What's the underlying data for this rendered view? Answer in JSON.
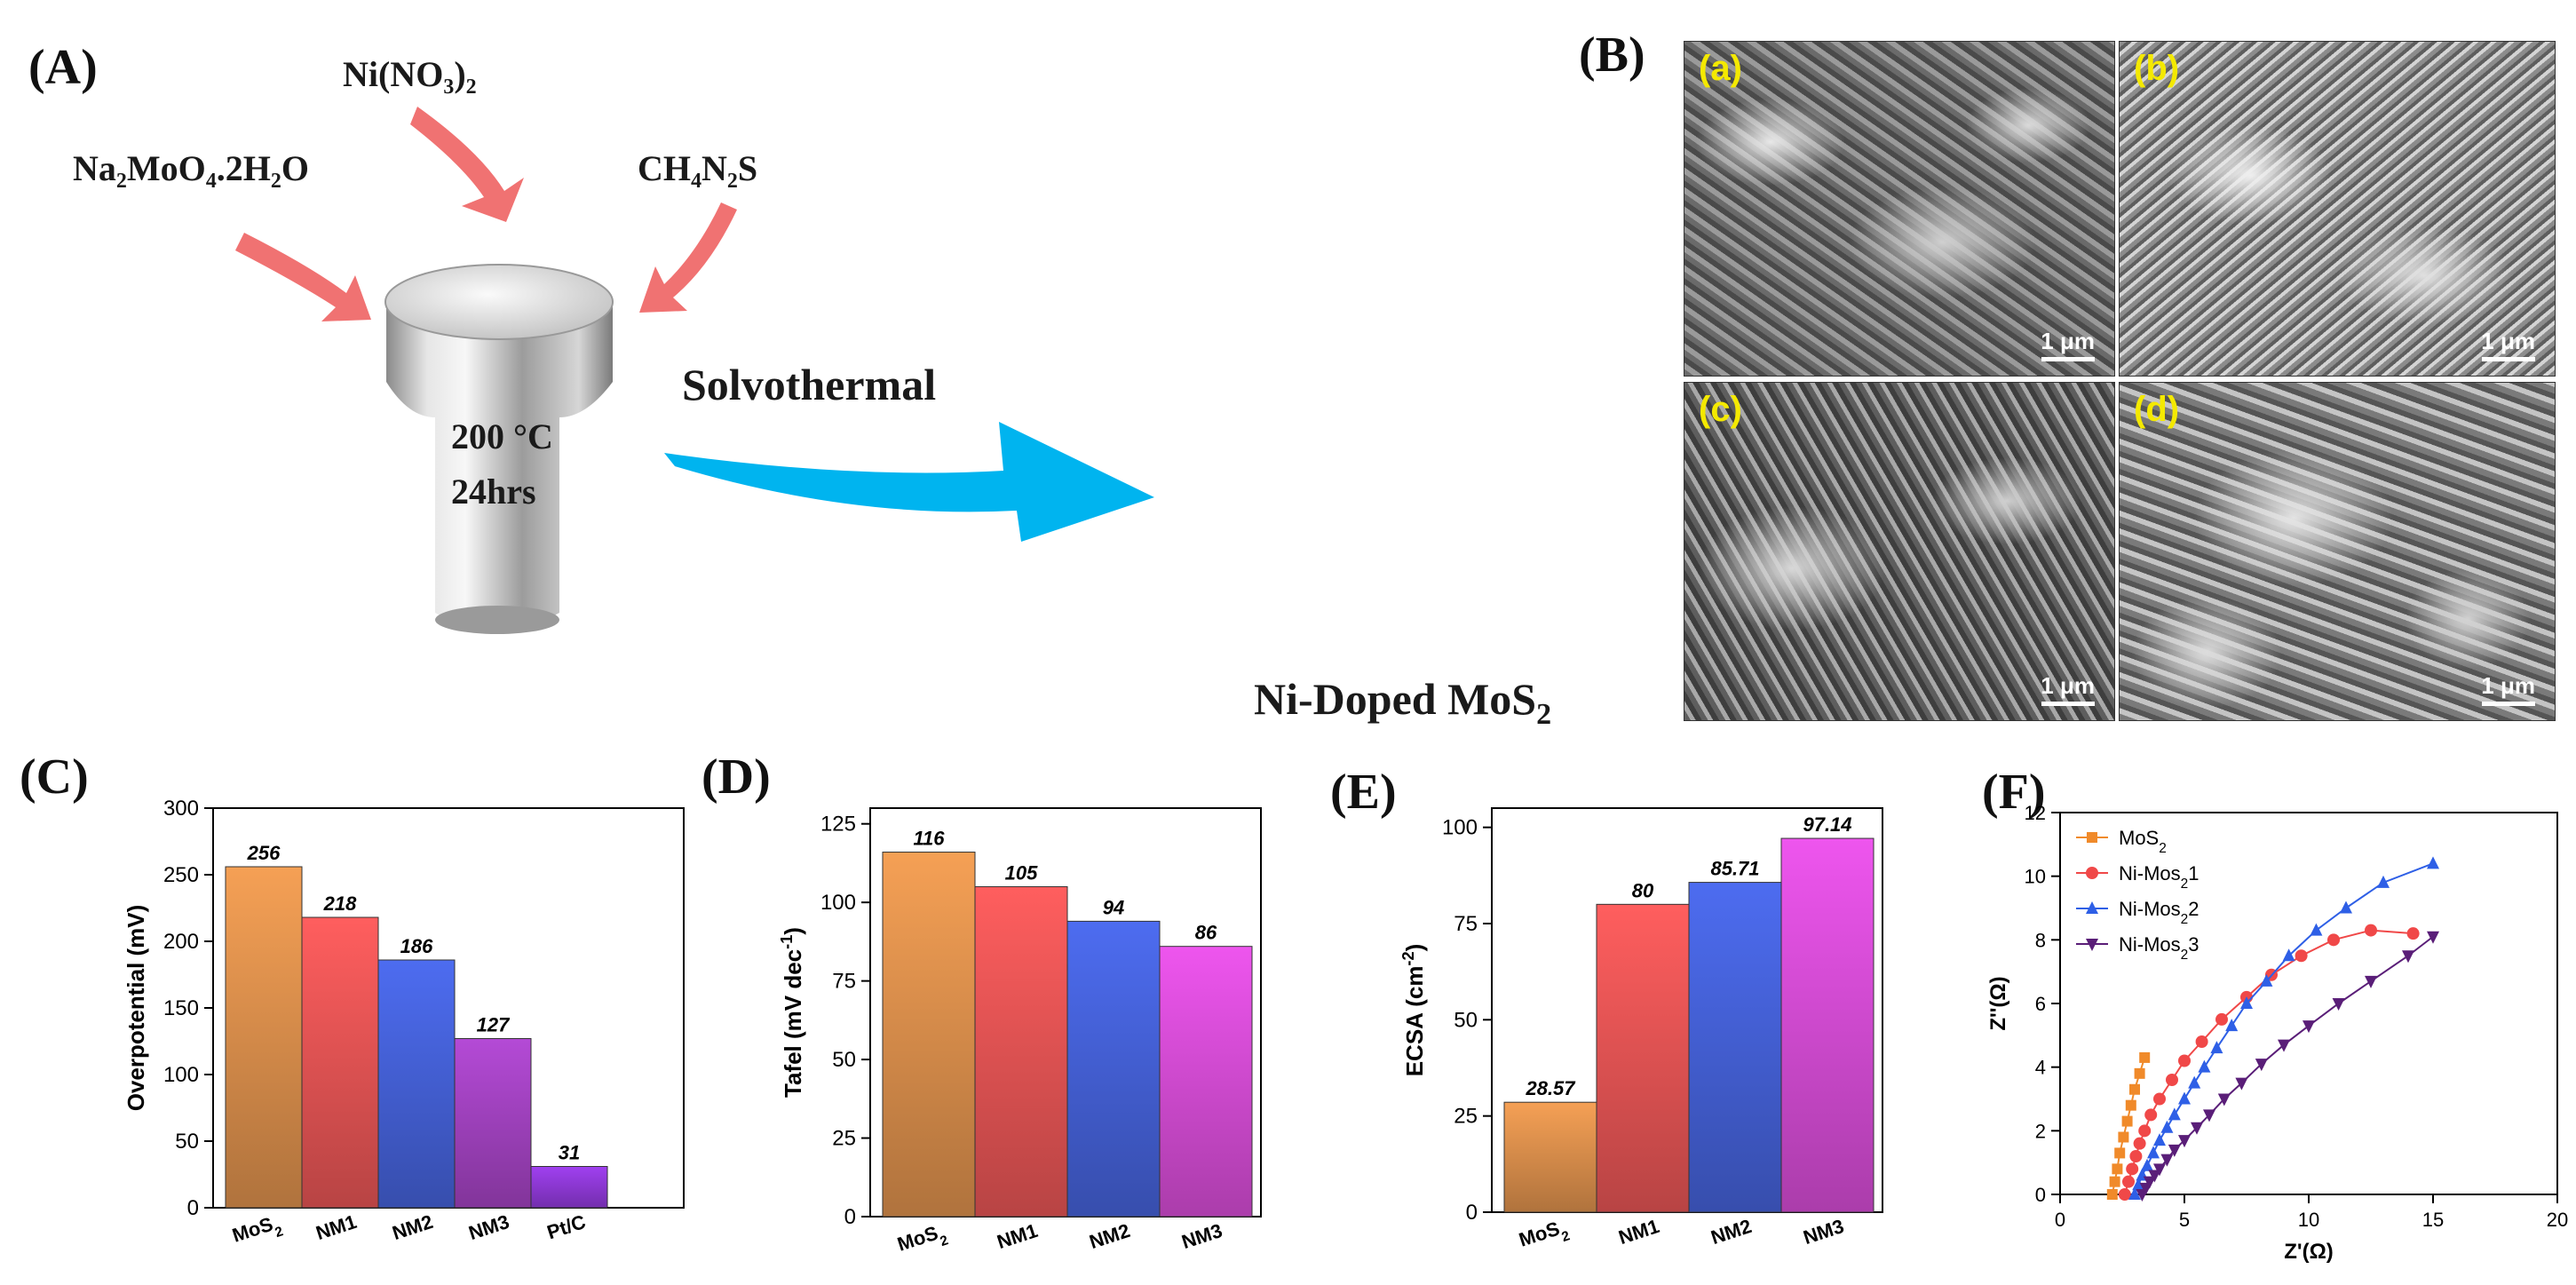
{
  "panel_labels": {
    "A": "(A)",
    "B": "(B)",
    "C": "(C)",
    "D": "(D)",
    "E": "(E)",
    "F": "(F)"
  },
  "schematic": {
    "reagents": [
      "Ni(NO₃)₂",
      "Na₂MoO₄.2H₂O",
      "CH₄N₂S"
    ],
    "conditions_temp": "200 °C",
    "conditions_time": "24hrs",
    "process": "Solvothermal",
    "product": "Ni-Doped MoS",
    "product_sub": "2",
    "arrow_color": "#f07272",
    "flow_arrow_color": "#00b4ef"
  },
  "sem": {
    "panels": [
      {
        "letter": "(a)",
        "scale": "1 μm"
      },
      {
        "letter": "(b)",
        "scale": "1 μm"
      },
      {
        "letter": "(c)",
        "scale": "1 μm"
      },
      {
        "letter": "(d)",
        "scale": "1 μm"
      }
    ]
  },
  "chart_data": [
    {
      "id": "C",
      "type": "bar",
      "ylabel": "Overpotential (mV)",
      "ylim": [
        0,
        300
      ],
      "yticks": [
        0,
        50,
        100,
        150,
        200,
        250,
        300
      ],
      "categories": [
        "MoS2",
        "NM1",
        "NM2",
        "NM3",
        "Pt/C"
      ],
      "category_subscripts": [
        "2",
        "",
        "",
        "",
        ""
      ],
      "values": [
        256,
        218,
        186,
        127,
        31
      ],
      "value_labels": [
        "256",
        "218",
        "186",
        "127",
        "31"
      ],
      "colors": [
        "#f5a055",
        "#ff5e5e",
        "#4d6cf0",
        "#b44ad6",
        "#a040f0"
      ]
    },
    {
      "id": "D",
      "type": "bar",
      "ylabel": "Tafel (mV dec",
      "ylabel_sup": "-1",
      "ylabel_end": ")",
      "ylim": [
        0,
        130
      ],
      "yticks": [
        0,
        25,
        50,
        75,
        100,
        125
      ],
      "categories": [
        "MoS2",
        "NM1",
        "NM2",
        "NM3"
      ],
      "category_subscripts": [
        "2",
        "",
        "",
        ""
      ],
      "values": [
        116,
        105,
        94,
        86
      ],
      "value_labels": [
        "116",
        "105",
        "94",
        "86"
      ],
      "colors": [
        "#f5a055",
        "#ff5e5e",
        "#4d6cf0",
        "#ee55ee"
      ]
    },
    {
      "id": "E",
      "type": "bar",
      "ylabel": "ECSA (cm",
      "ylabel_sup": "-2",
      "ylabel_end": ")",
      "ylim": [
        0,
        105
      ],
      "yticks": [
        0,
        25,
        50,
        75,
        100
      ],
      "categories": [
        "MoS2",
        "NM1",
        "NM2",
        "NM3"
      ],
      "category_subscripts": [
        "2",
        "",
        "",
        ""
      ],
      "values": [
        28.57,
        80,
        85.71,
        97.14
      ],
      "value_labels": [
        "28.57",
        "80",
        "85.71",
        "97.14"
      ],
      "colors": [
        "#f5a055",
        "#ff5e5e",
        "#4d6cf0",
        "#ee55ee"
      ]
    },
    {
      "id": "F",
      "type": "scatter",
      "xlabel": "Z'(Ω)",
      "ylabel": "Z''(Ω)",
      "xlim": [
        0,
        20
      ],
      "ylim": [
        0,
        12
      ],
      "xticks": [
        0,
        5,
        10,
        15,
        20
      ],
      "yticks": [
        0,
        2,
        4,
        6,
        8,
        10,
        12
      ],
      "legend_position": "top-left",
      "series": [
        {
          "name": "MoS",
          "sub": "2",
          "suffix": "",
          "color": "#f08a2a",
          "marker": "square",
          "x": [
            2.1,
            2.2,
            2.3,
            2.4,
            2.55,
            2.7,
            2.85,
            3.0,
            3.2,
            3.4
          ],
          "y": [
            0.0,
            0.4,
            0.8,
            1.3,
            1.8,
            2.3,
            2.8,
            3.3,
            3.8,
            4.3
          ]
        },
        {
          "name": "Ni-Mos",
          "sub": "2",
          "suffix": "1",
          "color": "#f04848",
          "marker": "circle",
          "x": [
            2.6,
            2.75,
            2.9,
            3.05,
            3.2,
            3.4,
            3.65,
            4.0,
            4.5,
            5.0,
            5.7,
            6.5,
            7.5,
            8.5,
            9.7,
            11.0,
            12.5,
            14.2
          ],
          "y": [
            0.0,
            0.4,
            0.8,
            1.2,
            1.6,
            2.0,
            2.5,
            3.0,
            3.6,
            4.2,
            4.8,
            5.5,
            6.2,
            6.9,
            7.5,
            8.0,
            8.3,
            8.2
          ]
        },
        {
          "name": "Ni-Mos",
          "sub": "2",
          "suffix": "2",
          "color": "#2e5fe6",
          "marker": "triangle-up",
          "x": [
            3.0,
            3.15,
            3.3,
            3.5,
            3.75,
            4.0,
            4.3,
            4.6,
            5.0,
            5.4,
            5.8,
            6.3,
            6.9,
            7.5,
            8.3,
            9.2,
            10.3,
            11.5,
            13.0,
            15.0
          ],
          "y": [
            0.0,
            0.3,
            0.6,
            0.9,
            1.3,
            1.7,
            2.1,
            2.5,
            3.0,
            3.5,
            4.0,
            4.6,
            5.3,
            6.0,
            6.7,
            7.5,
            8.3,
            9.0,
            9.8,
            10.4
          ]
        },
        {
          "name": "Ni-Mos",
          "sub": "2",
          "suffix": "3",
          "color": "#5a1e78",
          "marker": "triangle-down",
          "x": [
            3.3,
            3.45,
            3.6,
            3.8,
            4.0,
            4.3,
            4.6,
            5.0,
            5.5,
            6.0,
            6.6,
            7.3,
            8.1,
            9.0,
            10.0,
            11.2,
            12.5,
            14.0,
            15.0
          ],
          "y": [
            0.0,
            0.2,
            0.4,
            0.6,
            0.8,
            1.1,
            1.4,
            1.7,
            2.1,
            2.5,
            3.0,
            3.5,
            4.1,
            4.7,
            5.3,
            6.0,
            6.7,
            7.5,
            8.1
          ]
        }
      ]
    }
  ]
}
